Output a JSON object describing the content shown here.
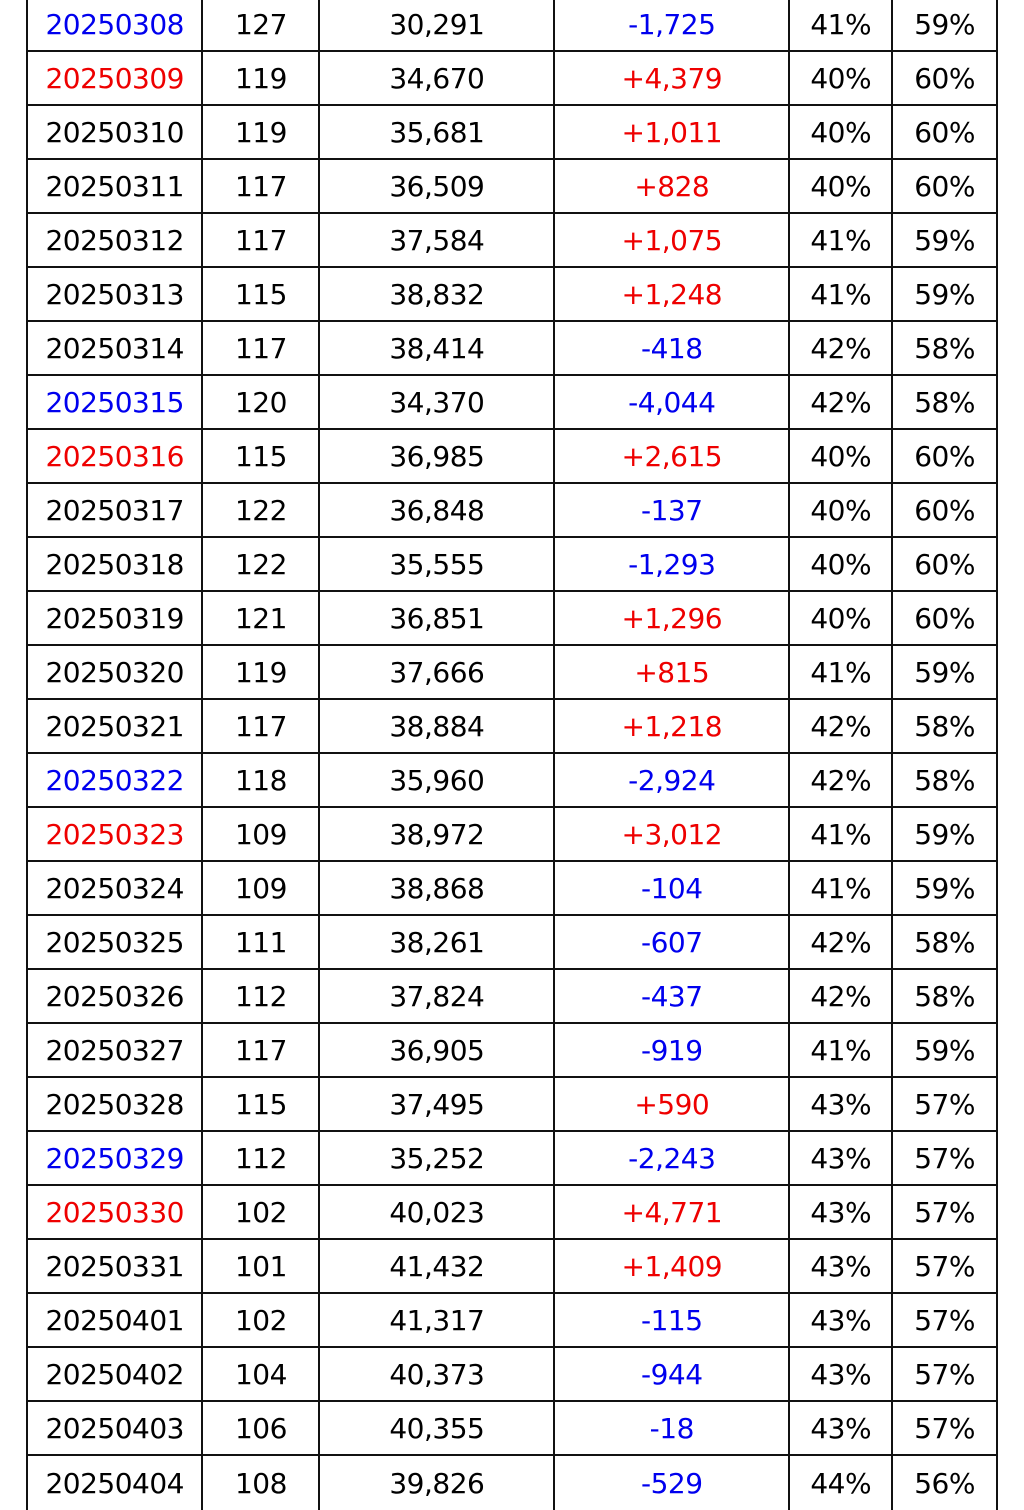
{
  "colors": {
    "text": "#000000",
    "weekend_blue": "#0000ee",
    "holiday_red": "#ee0000",
    "positive": "#ee0000",
    "negative": "#0000ee",
    "grid": "#111111"
  },
  "rows": [
    {
      "date": "20250308",
      "date_color": "blue",
      "a": "127",
      "b": "30,291",
      "change": "-1,725",
      "p1": "41%",
      "p2": "59%"
    },
    {
      "date": "20250309",
      "date_color": "red",
      "a": "119",
      "b": "34,670",
      "change": "+4,379",
      "p1": "40%",
      "p2": "60%"
    },
    {
      "date": "20250310",
      "date_color": "black",
      "a": "119",
      "b": "35,681",
      "change": "+1,011",
      "p1": "40%",
      "p2": "60%"
    },
    {
      "date": "20250311",
      "date_color": "black",
      "a": "117",
      "b": "36,509",
      "change": "+828",
      "p1": "40%",
      "p2": "60%"
    },
    {
      "date": "20250312",
      "date_color": "black",
      "a": "117",
      "b": "37,584",
      "change": "+1,075",
      "p1": "41%",
      "p2": "59%"
    },
    {
      "date": "20250313",
      "date_color": "black",
      "a": "115",
      "b": "38,832",
      "change": "+1,248",
      "p1": "41%",
      "p2": "59%"
    },
    {
      "date": "20250314",
      "date_color": "black",
      "a": "117",
      "b": "38,414",
      "change": "-418",
      "p1": "42%",
      "p2": "58%"
    },
    {
      "date": "20250315",
      "date_color": "blue",
      "a": "120",
      "b": "34,370",
      "change": "-4,044",
      "p1": "42%",
      "p2": "58%"
    },
    {
      "date": "20250316",
      "date_color": "red",
      "a": "115",
      "b": "36,985",
      "change": "+2,615",
      "p1": "40%",
      "p2": "60%"
    },
    {
      "date": "20250317",
      "date_color": "black",
      "a": "122",
      "b": "36,848",
      "change": "-137",
      "p1": "40%",
      "p2": "60%"
    },
    {
      "date": "20250318",
      "date_color": "black",
      "a": "122",
      "b": "35,555",
      "change": "-1,293",
      "p1": "40%",
      "p2": "60%"
    },
    {
      "date": "20250319",
      "date_color": "black",
      "a": "121",
      "b": "36,851",
      "change": "+1,296",
      "p1": "40%",
      "p2": "60%"
    },
    {
      "date": "20250320",
      "date_color": "black",
      "a": "119",
      "b": "37,666",
      "change": "+815",
      "p1": "41%",
      "p2": "59%"
    },
    {
      "date": "20250321",
      "date_color": "black",
      "a": "117",
      "b": "38,884",
      "change": "+1,218",
      "p1": "42%",
      "p2": "58%"
    },
    {
      "date": "20250322",
      "date_color": "blue",
      "a": "118",
      "b": "35,960",
      "change": "-2,924",
      "p1": "42%",
      "p2": "58%"
    },
    {
      "date": "20250323",
      "date_color": "red",
      "a": "109",
      "b": "38,972",
      "change": "+3,012",
      "p1": "41%",
      "p2": "59%"
    },
    {
      "date": "20250324",
      "date_color": "black",
      "a": "109",
      "b": "38,868",
      "change": "-104",
      "p1": "41%",
      "p2": "59%"
    },
    {
      "date": "20250325",
      "date_color": "black",
      "a": "111",
      "b": "38,261",
      "change": "-607",
      "p1": "42%",
      "p2": "58%"
    },
    {
      "date": "20250326",
      "date_color": "black",
      "a": "112",
      "b": "37,824",
      "change": "-437",
      "p1": "42%",
      "p2": "58%"
    },
    {
      "date": "20250327",
      "date_color": "black",
      "a": "117",
      "b": "36,905",
      "change": "-919",
      "p1": "41%",
      "p2": "59%"
    },
    {
      "date": "20250328",
      "date_color": "black",
      "a": "115",
      "b": "37,495",
      "change": "+590",
      "p1": "43%",
      "p2": "57%"
    },
    {
      "date": "20250329",
      "date_color": "blue",
      "a": "112",
      "b": "35,252",
      "change": "-2,243",
      "p1": "43%",
      "p2": "57%"
    },
    {
      "date": "20250330",
      "date_color": "red",
      "a": "102",
      "b": "40,023",
      "change": "+4,771",
      "p1": "43%",
      "p2": "57%"
    },
    {
      "date": "20250331",
      "date_color": "black",
      "a": "101",
      "b": "41,432",
      "change": "+1,409",
      "p1": "43%",
      "p2": "57%"
    },
    {
      "date": "20250401",
      "date_color": "black",
      "a": "102",
      "b": "41,317",
      "change": "-115",
      "p1": "43%",
      "p2": "57%"
    },
    {
      "date": "20250402",
      "date_color": "black",
      "a": "104",
      "b": "40,373",
      "change": "-944",
      "p1": "43%",
      "p2": "57%"
    },
    {
      "date": "20250403",
      "date_color": "black",
      "a": "106",
      "b": "40,355",
      "change": "-18",
      "p1": "43%",
      "p2": "57%"
    },
    {
      "date": "20250404",
      "date_color": "black",
      "a": "108",
      "b": "39,826",
      "change": "-529",
      "p1": "44%",
      "p2": "56%"
    }
  ]
}
